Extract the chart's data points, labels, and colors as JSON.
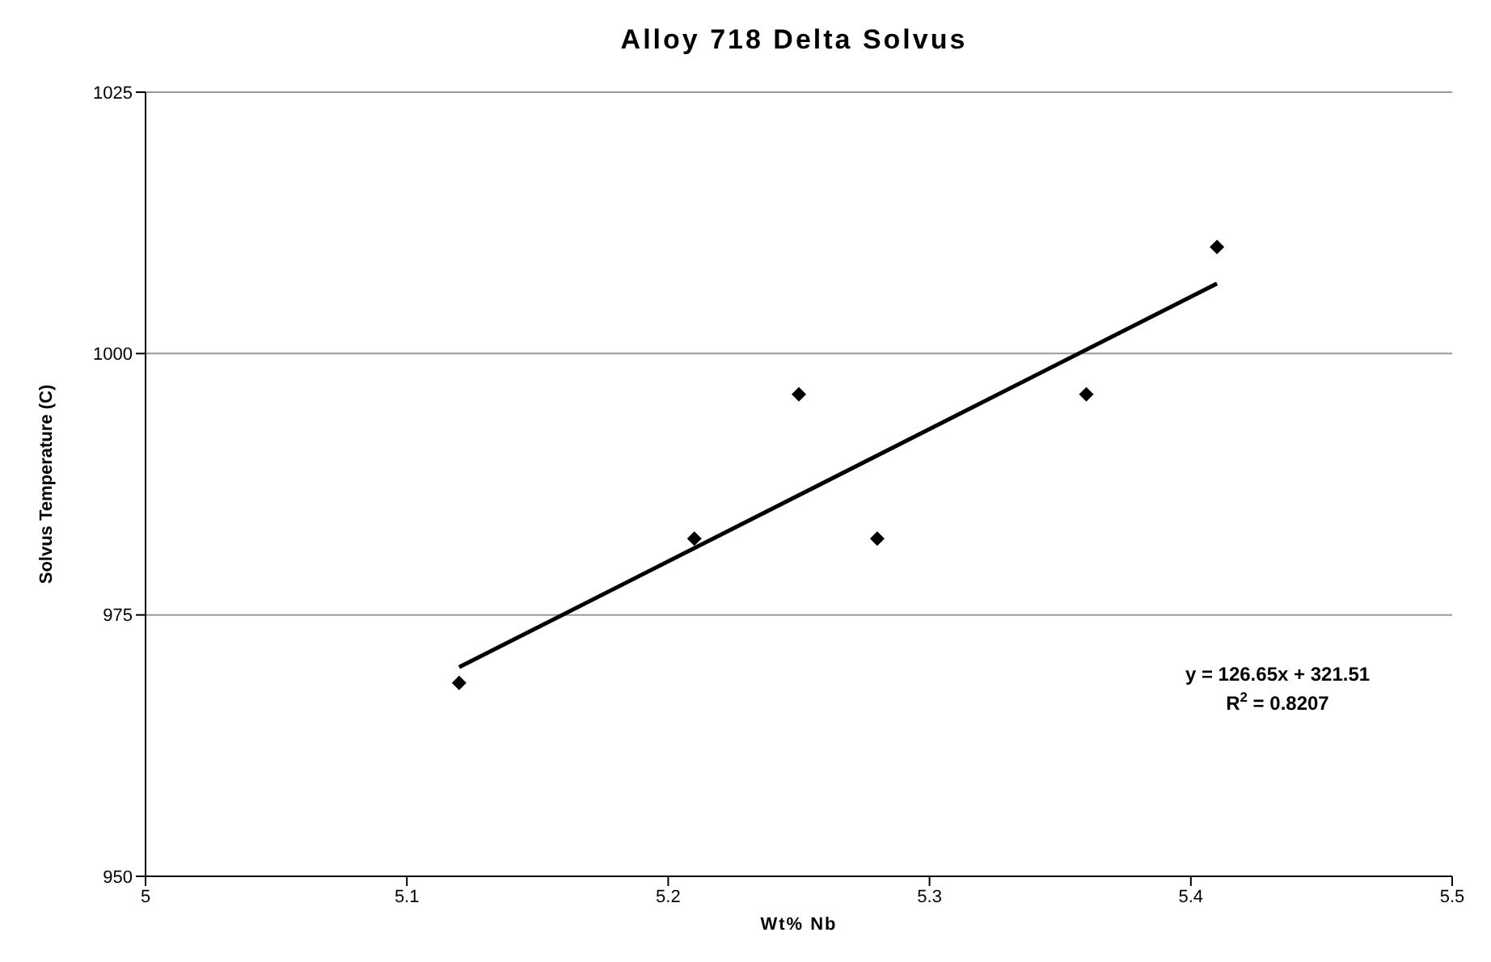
{
  "chart_data": {
    "type": "scatter",
    "title": "Alloy 718 Delta Solvus",
    "xlabel": "Wt% Nb",
    "ylabel": "Solvus Temperature (C)",
    "x": [
      5.12,
      5.21,
      5.25,
      5.28,
      5.36,
      5.41
    ],
    "series": [
      {
        "color": "#000000",
        "marker": "diamond",
        "values": [
          968.5,
          982.3,
          996.1,
          982.3,
          996.1,
          1010.2
        ]
      },
      {
        "type": "line",
        "color": "#000000",
        "marker": "none",
        "x": [
          5.12,
          5.41
        ],
        "values": [
          970,
          1006.7
        ]
      }
    ],
    "xlim": [
      5,
      5.5
    ],
    "xticks": [
      5,
      5.1,
      5.2,
      5.3,
      5.4,
      5.5
    ],
    "ylim": [
      950,
      1025
    ],
    "yticks": [
      950,
      975,
      1000,
      1025
    ],
    "grid": "y",
    "legend": false,
    "annotations": [
      "y = 126.65x + 321.51",
      "R$^{2}$ = 0.8207"
    ]
  }
}
